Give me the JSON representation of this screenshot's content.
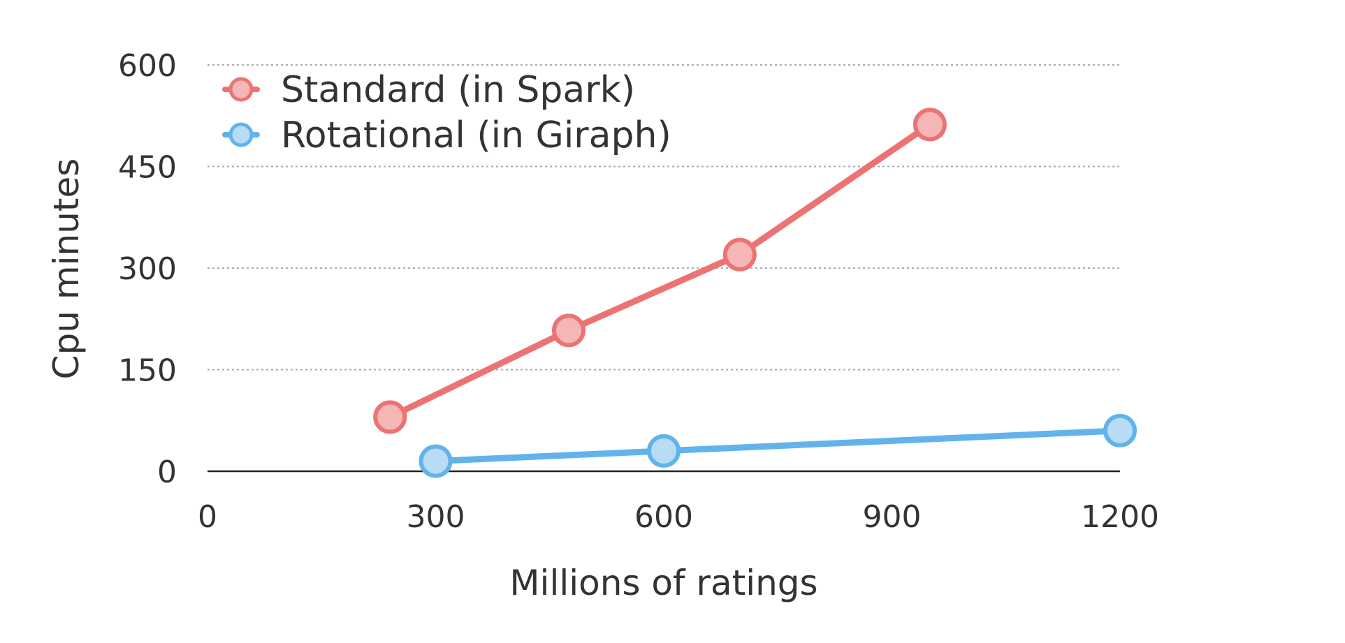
{
  "chart_data": {
    "type": "line",
    "xlabel": "Millions of ratings",
    "ylabel": "Cpu minutes",
    "xlim": [
      0,
      1200
    ],
    "ylim": [
      0,
      600
    ],
    "x_ticks": [
      "0",
      "300",
      "600",
      "900",
      "1200"
    ],
    "y_ticks": [
      "0",
      "150",
      "300",
      "450",
      "600"
    ],
    "grid": true,
    "legend_position": "top-left",
    "series": [
      {
        "name": "Standard (in Spark)",
        "color": "#ec7373",
        "marker_fill": "#f5b6b6",
        "points": [
          {
            "x": 240,
            "y": 80
          },
          {
            "x": 475,
            "y": 208
          },
          {
            "x": 700,
            "y": 320
          },
          {
            "x": 950,
            "y": 512
          }
        ]
      },
      {
        "name": "Rotational (in Giraph)",
        "color": "#62b3ec",
        "marker_fill": "#b9dcf6",
        "points": [
          {
            "x": 300,
            "y": 15
          },
          {
            "x": 600,
            "y": 30
          },
          {
            "x": 1200,
            "y": 60
          }
        ]
      }
    ]
  }
}
